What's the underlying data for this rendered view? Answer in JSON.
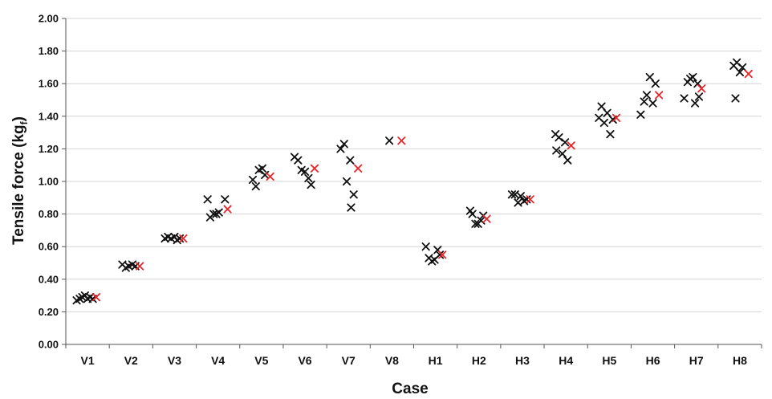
{
  "chart_data": {
    "type": "scatter",
    "title": "",
    "xlabel": "Case",
    "ylabel_main": "Tensile force (kg",
    "ylabel_sub": "f",
    "ylabel_close": ")",
    "ylim": [
      0,
      2.0
    ],
    "ytick_step": 0.2,
    "grid": true,
    "legend": "none",
    "categories": [
      "V1",
      "V2",
      "V3",
      "V4",
      "V5",
      "V6",
      "V7",
      "V8",
      "H1",
      "H2",
      "H3",
      "H4",
      "H5",
      "H6",
      "H7",
      "H8"
    ],
    "series": [
      {
        "color": "#111111",
        "marker": "x",
        "points": [
          {
            "case": "V1",
            "offset": -0.25,
            "y": 0.27
          },
          {
            "case": "V1",
            "offset": -0.18,
            "y": 0.28
          },
          {
            "case": "V1",
            "offset": -0.12,
            "y": 0.29
          },
          {
            "case": "V1",
            "offset": -0.06,
            "y": 0.3
          },
          {
            "case": "V1",
            "offset": 0.0,
            "y": 0.28
          },
          {
            "case": "V1",
            "offset": 0.06,
            "y": 0.29
          },
          {
            "case": "V1",
            "offset": 0.12,
            "y": 0.28
          },
          {
            "case": "V2",
            "offset": -0.2,
            "y": 0.49
          },
          {
            "case": "V2",
            "offset": -0.12,
            "y": 0.47
          },
          {
            "case": "V2",
            "offset": -0.05,
            "y": 0.48
          },
          {
            "case": "V2",
            "offset": 0.03,
            "y": 0.49
          },
          {
            "case": "V2",
            "offset": 0.1,
            "y": 0.48
          },
          {
            "case": "V3",
            "offset": -0.22,
            "y": 0.65
          },
          {
            "case": "V3",
            "offset": -0.15,
            "y": 0.66
          },
          {
            "case": "V3",
            "offset": -0.08,
            "y": 0.65
          },
          {
            "case": "V3",
            "offset": 0.0,
            "y": 0.66
          },
          {
            "case": "V3",
            "offset": 0.06,
            "y": 0.64
          },
          {
            "case": "V3",
            "offset": 0.12,
            "y": 0.65
          },
          {
            "case": "V4",
            "offset": -0.24,
            "y": 0.89
          },
          {
            "case": "V4",
            "offset": -0.18,
            "y": 0.78
          },
          {
            "case": "V4",
            "offset": -0.1,
            "y": 0.8
          },
          {
            "case": "V4",
            "offset": -0.04,
            "y": 0.8
          },
          {
            "case": "V4",
            "offset": 0.02,
            "y": 0.81
          },
          {
            "case": "V4",
            "offset": 0.16,
            "y": 0.89
          },
          {
            "case": "V5",
            "offset": -0.2,
            "y": 1.01
          },
          {
            "case": "V5",
            "offset": -0.13,
            "y": 0.97
          },
          {
            "case": "V5",
            "offset": -0.06,
            "y": 1.07
          },
          {
            "case": "V5",
            "offset": 0.02,
            "y": 1.08
          },
          {
            "case": "V5",
            "offset": 0.08,
            "y": 1.04
          },
          {
            "case": "V6",
            "offset": -0.24,
            "y": 1.15
          },
          {
            "case": "V6",
            "offset": -0.16,
            "y": 1.13
          },
          {
            "case": "V6",
            "offset": -0.08,
            "y": 1.07
          },
          {
            "case": "V6",
            "offset": 0.0,
            "y": 1.06
          },
          {
            "case": "V6",
            "offset": 0.08,
            "y": 1.02
          },
          {
            "case": "V6",
            "offset": 0.14,
            "y": 0.98
          },
          {
            "case": "V7",
            "offset": -0.18,
            "y": 1.2
          },
          {
            "case": "V7",
            "offset": -0.1,
            "y": 1.23
          },
          {
            "case": "V7",
            "offset": -0.04,
            "y": 1.0
          },
          {
            "case": "V7",
            "offset": 0.04,
            "y": 1.13
          },
          {
            "case": "V7",
            "offset": 0.12,
            "y": 0.92
          },
          {
            "case": "V7",
            "offset": 0.06,
            "y": 0.84
          },
          {
            "case": "V8",
            "offset": -0.06,
            "y": 1.25
          },
          {
            "case": "H1",
            "offset": -0.22,
            "y": 0.6
          },
          {
            "case": "H1",
            "offset": -0.15,
            "y": 0.53
          },
          {
            "case": "H1",
            "offset": -0.08,
            "y": 0.51
          },
          {
            "case": "H1",
            "offset": -0.02,
            "y": 0.52
          },
          {
            "case": "H1",
            "offset": 0.05,
            "y": 0.58
          },
          {
            "case": "H1",
            "offset": 0.1,
            "y": 0.55
          },
          {
            "case": "H2",
            "offset": -0.2,
            "y": 0.82
          },
          {
            "case": "H2",
            "offset": -0.15,
            "y": 0.8
          },
          {
            "case": "H2",
            "offset": -0.08,
            "y": 0.74
          },
          {
            "case": "H2",
            "offset": -0.02,
            "y": 0.74
          },
          {
            "case": "H2",
            "offset": 0.05,
            "y": 0.76
          },
          {
            "case": "H2",
            "offset": 0.1,
            "y": 0.79
          },
          {
            "case": "H3",
            "offset": -0.24,
            "y": 0.92
          },
          {
            "case": "H3",
            "offset": -0.17,
            "y": 0.92
          },
          {
            "case": "H3",
            "offset": -0.1,
            "y": 0.87
          },
          {
            "case": "H3",
            "offset": -0.04,
            "y": 0.91
          },
          {
            "case": "H3",
            "offset": 0.04,
            "y": 0.88
          },
          {
            "case": "H3",
            "offset": 0.1,
            "y": 0.89
          },
          {
            "case": "H4",
            "offset": -0.24,
            "y": 1.29
          },
          {
            "case": "H4",
            "offset": -0.16,
            "y": 1.27
          },
          {
            "case": "H4",
            "offset": -0.22,
            "y": 1.19
          },
          {
            "case": "H4",
            "offset": -0.08,
            "y": 1.17
          },
          {
            "case": "H4",
            "offset": -0.02,
            "y": 1.24
          },
          {
            "case": "H4",
            "offset": 0.04,
            "y": 1.13
          },
          {
            "case": "H5",
            "offset": -0.24,
            "y": 1.39
          },
          {
            "case": "H5",
            "offset": -0.18,
            "y": 1.46
          },
          {
            "case": "H5",
            "offset": -0.12,
            "y": 1.36
          },
          {
            "case": "H5",
            "offset": -0.05,
            "y": 1.42
          },
          {
            "case": "H5",
            "offset": 0.02,
            "y": 1.29
          },
          {
            "case": "H5",
            "offset": 0.08,
            "y": 1.38
          },
          {
            "case": "H6",
            "offset": -0.28,
            "y": 1.41
          },
          {
            "case": "H6",
            "offset": -0.2,
            "y": 1.49
          },
          {
            "case": "H6",
            "offset": -0.14,
            "y": 1.53
          },
          {
            "case": "H6",
            "offset": -0.07,
            "y": 1.64
          },
          {
            "case": "H6",
            "offset": 0.0,
            "y": 1.48
          },
          {
            "case": "H6",
            "offset": 0.06,
            "y": 1.6
          },
          {
            "case": "H7",
            "offset": -0.28,
            "y": 1.51
          },
          {
            "case": "H7",
            "offset": -0.2,
            "y": 1.61
          },
          {
            "case": "H7",
            "offset": -0.14,
            "y": 1.63
          },
          {
            "case": "H7",
            "offset": -0.08,
            "y": 1.64
          },
          {
            "case": "H7",
            "offset": -0.03,
            "y": 1.48
          },
          {
            "case": "H7",
            "offset": 0.03,
            "y": 1.6
          },
          {
            "case": "H7",
            "offset": 0.06,
            "y": 1.52
          },
          {
            "case": "H8",
            "offset": -0.14,
            "y": 1.71
          },
          {
            "case": "H8",
            "offset": -0.07,
            "y": 1.73
          },
          {
            "case": "H8",
            "offset": -0.1,
            "y": 1.51
          },
          {
            "case": "H8",
            "offset": 0.0,
            "y": 1.67
          },
          {
            "case": "H8",
            "offset": 0.06,
            "y": 1.7
          }
        ]
      },
      {
        "color": "#e8262b",
        "marker": "x",
        "points": [
          {
            "case": "V1",
            "offset": 0.2,
            "y": 0.29
          },
          {
            "case": "V2",
            "offset": 0.2,
            "y": 0.48
          },
          {
            "case": "V3",
            "offset": 0.2,
            "y": 0.65
          },
          {
            "case": "V4",
            "offset": 0.22,
            "y": 0.83
          },
          {
            "case": "V5",
            "offset": 0.2,
            "y": 1.03
          },
          {
            "case": "V6",
            "offset": 0.22,
            "y": 1.08
          },
          {
            "case": "V7",
            "offset": 0.22,
            "y": 1.08
          },
          {
            "case": "V8",
            "offset": 0.22,
            "y": 1.25
          },
          {
            "case": "H1",
            "offset": 0.16,
            "y": 0.55
          },
          {
            "case": "H2",
            "offset": 0.18,
            "y": 0.77
          },
          {
            "case": "H3",
            "offset": 0.18,
            "y": 0.89
          },
          {
            "case": "H4",
            "offset": 0.12,
            "y": 1.22
          },
          {
            "case": "H5",
            "offset": 0.16,
            "y": 1.39
          },
          {
            "case": "H6",
            "offset": 0.14,
            "y": 1.53
          },
          {
            "case": "H7",
            "offset": 0.12,
            "y": 1.57
          },
          {
            "case": "H8",
            "offset": 0.2,
            "y": 1.66
          }
        ]
      }
    ]
  }
}
